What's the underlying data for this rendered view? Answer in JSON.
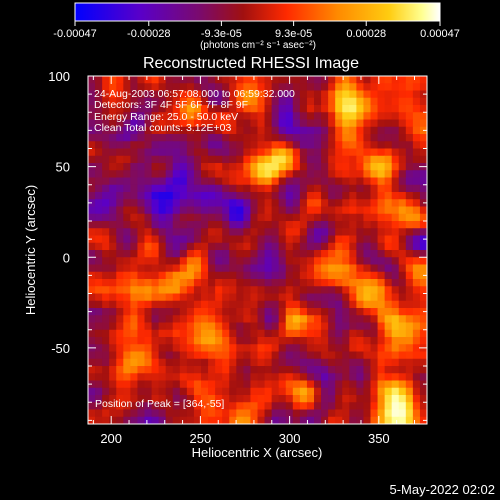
{
  "colorbar": {
    "tick_labels": [
      "-0.00047",
      "-0.00028",
      "-9.3e-05",
      "9.3e-05",
      "0.00028",
      "0.00047"
    ],
    "tick_values": [
      -0.00047,
      -0.00028,
      -9.3e-05,
      9.3e-05,
      0.00028,
      0.00047
    ],
    "range": [
      -0.00047,
      0.00047
    ],
    "units": "(photons cm⁻² s⁻¹ asec⁻²)",
    "colormap_stops": [
      "#0000ff",
      "#5a00c8",
      "#7a0a6e",
      "#a01010",
      "#ff2a00",
      "#ff8a00",
      "#ffcc10",
      "#ffff90",
      "#ffffff"
    ]
  },
  "chart_data": {
    "type": "heatmap",
    "title": "Reconstructed RHESSI Image",
    "xlabel": "Heliocentric X (arcsec)",
    "ylabel": "Heliocentric Y (arcsec)",
    "xlim": [
      187,
      377
    ],
    "ylim": [
      -92,
      100
    ],
    "xticks": [
      200,
      250,
      300,
      350
    ],
    "yticks": [
      -50,
      0,
      50,
      100
    ],
    "grid_size": 48,
    "annotations": [
      "24-Aug-2003 06:57:08.000 to 06:59:32.000",
      "Detectors: 3F 4F 5F 6F 7F 8F 9F",
      "Energy Range: 25.0 - 50.0 keV",
      "Clean    Total counts: 3.12E+03"
    ],
    "peak_label": "Position of Peak = [364,-55]",
    "peak": [
      364,
      -55
    ]
  },
  "footer": {
    "date": "5-May-2022 02:02"
  }
}
